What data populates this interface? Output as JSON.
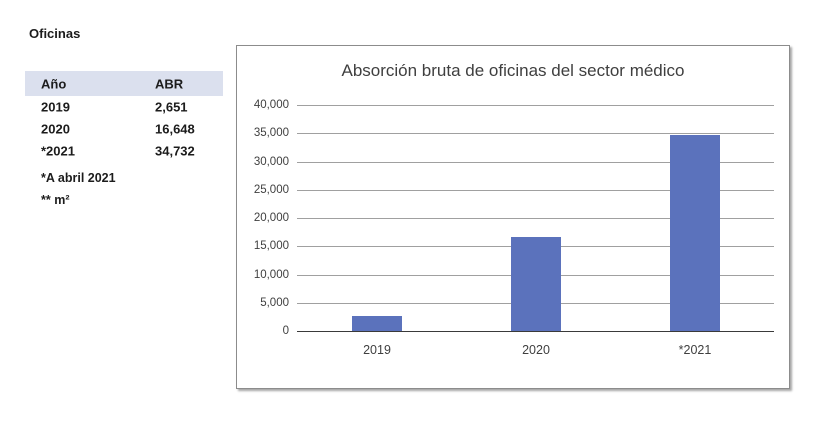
{
  "page": {
    "title": "Oficinas"
  },
  "table": {
    "header_bg": "#dbe0ee",
    "headers": [
      "Año",
      "ABR"
    ],
    "rows": [
      {
        "year": "2019",
        "abr": "2,651"
      },
      {
        "year": "2020",
        "abr": "16,648"
      },
      {
        "year": "*2021",
        "abr": "34,732"
      }
    ],
    "footnotes": [
      "*A abril 2021",
      "** m²"
    ]
  },
  "chart_data": {
    "type": "bar",
    "title": "Absorción bruta de oficinas del sector médico",
    "categories": [
      "2019",
      "2020",
      "*2021"
    ],
    "values": [
      2651,
      16648,
      34732
    ],
    "xlabel": "",
    "ylabel": "",
    "ylim": [
      0,
      40000
    ],
    "ytick_step": 5000,
    "ytick_labels": [
      "0",
      "5,000",
      "10,000",
      "15,000",
      "20,000",
      "25,000",
      "30,000",
      "35,000",
      "40,000"
    ],
    "bar_color": "#5b72bc",
    "grid": true,
    "legend": "none"
  }
}
